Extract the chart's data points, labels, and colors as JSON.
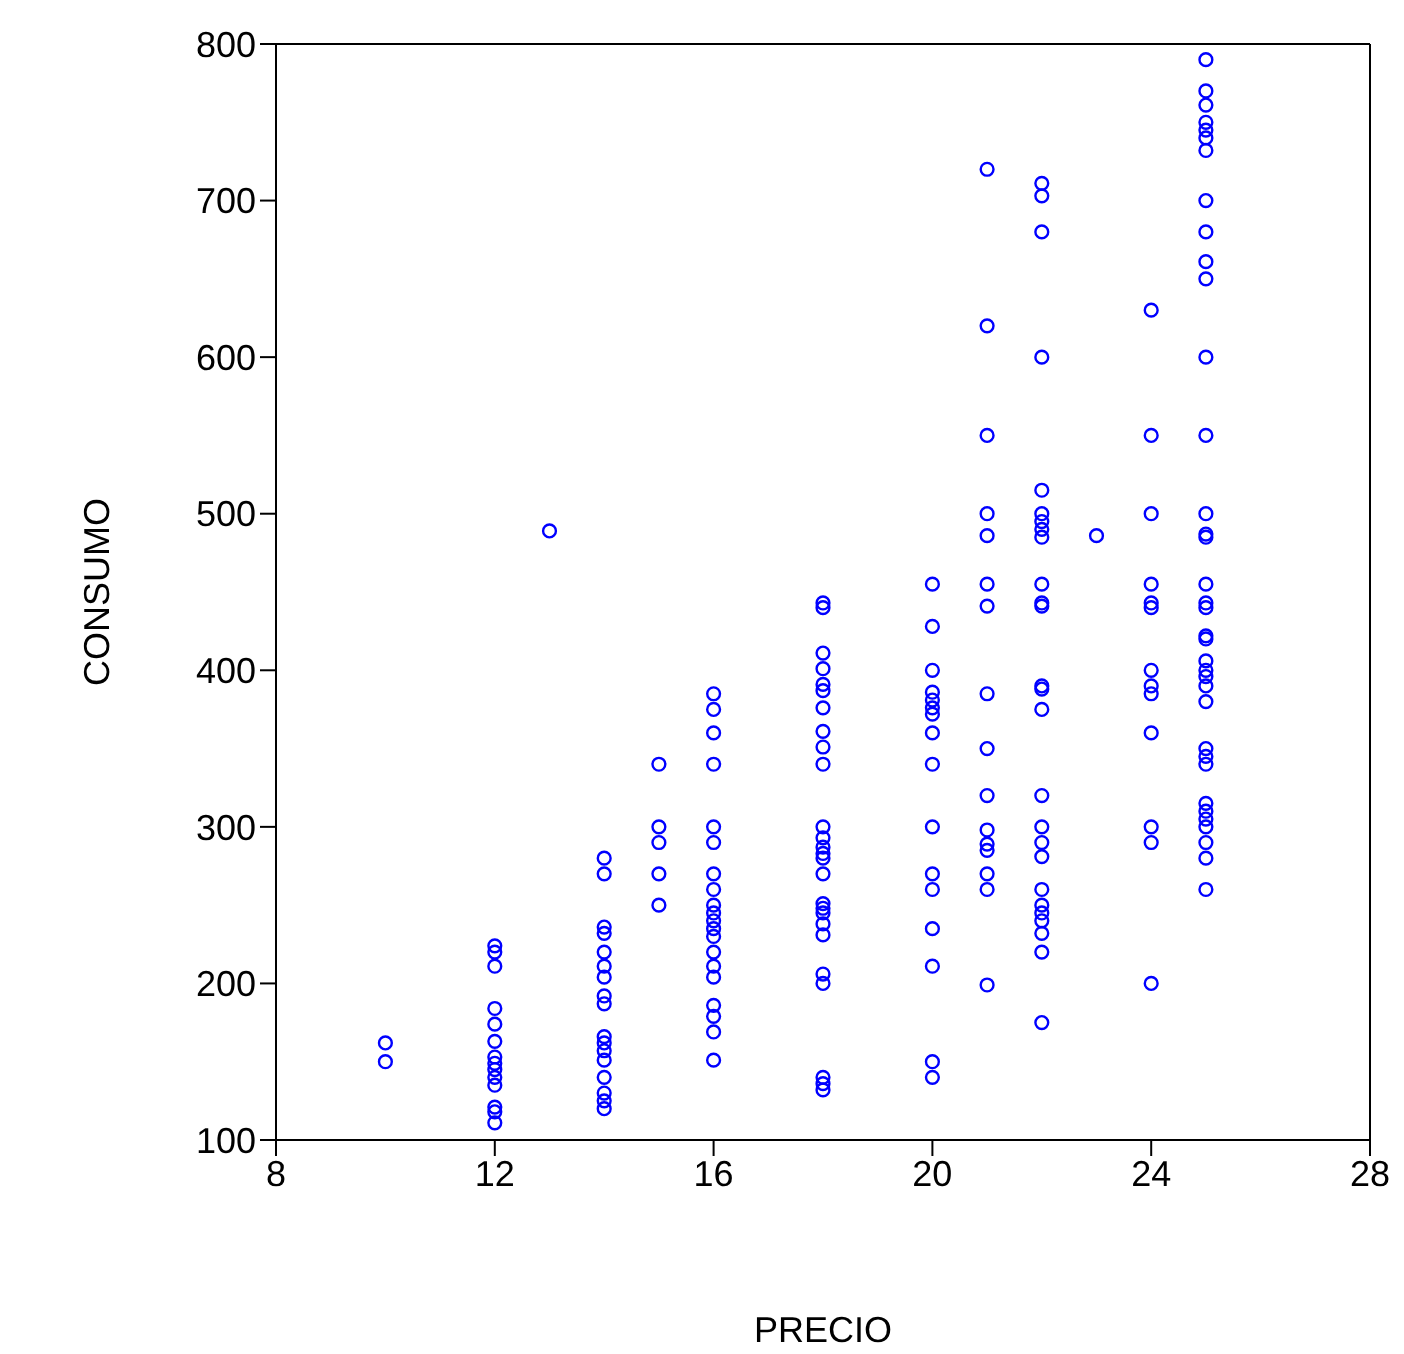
{
  "chart_data": {
    "type": "scatter",
    "xlabel": "PRECIO",
    "ylabel": "CONSUMO",
    "xlim": [
      8,
      28
    ],
    "xticks": [
      8,
      12,
      16,
      20,
      24,
      28
    ],
    "ylim": [
      100,
      800
    ],
    "yticks": [
      100,
      200,
      300,
      400,
      500,
      600,
      700,
      800
    ],
    "grid": false,
    "marker": "circle",
    "series": [
      {
        "color": "#0000ff",
        "x": [
          10,
          10,
          12,
          12,
          12,
          12,
          12,
          12,
          12,
          12,
          12,
          12,
          12,
          12,
          12,
          12,
          13,
          14,
          14,
          14,
          14,
          14,
          14,
          14,
          14,
          14,
          14,
          14,
          14,
          14,
          14,
          14,
          14,
          14,
          15,
          15,
          15,
          15,
          15,
          16,
          16,
          16,
          16,
          16,
          16,
          16,
          16,
          16,
          16,
          16,
          16,
          16,
          16,
          16,
          16,
          16,
          16,
          16,
          16,
          18,
          18,
          18,
          18,
          18,
          18,
          18,
          18,
          18,
          18,
          18,
          18,
          18,
          18,
          18,
          18,
          18,
          18,
          18,
          18,
          18,
          18,
          18,
          18,
          18,
          18,
          20,
          20,
          20,
          20,
          20,
          20,
          20,
          20,
          20,
          20,
          20,
          20,
          20,
          20,
          20,
          20,
          21,
          21,
          21,
          21,
          21,
          21,
          21,
          21,
          21,
          21,
          21,
          21,
          21,
          21,
          21,
          21,
          22,
          22,
          22,
          22,
          22,
          22,
          22,
          22,
          22,
          22,
          22,
          22,
          22,
          22,
          22,
          22,
          22,
          22,
          22,
          22,
          22,
          22,
          22,
          22,
          22,
          22,
          23,
          24,
          24,
          24,
          24,
          24,
          24,
          24,
          24,
          24,
          24,
          24,
          24,
          24,
          25,
          25,
          25,
          25,
          25,
          25,
          25,
          25,
          25,
          25,
          25,
          25,
          25,
          25,
          25,
          25,
          25,
          25,
          25,
          25,
          25,
          25,
          25,
          25,
          25,
          25,
          25,
          25,
          25,
          25,
          25,
          25,
          25,
          25,
          25,
          25
        ],
        "values": [
          162,
          150,
          224,
          220,
          211,
          184,
          174,
          163,
          153,
          149,
          145,
          140,
          135,
          121,
          118,
          111,
          489,
          280,
          270,
          236,
          232,
          220,
          211,
          204,
          192,
          187,
          166,
          162,
          157,
          151,
          140,
          130,
          125,
          120,
          340,
          300,
          290,
          270,
          250,
          385,
          375,
          360,
          340,
          300,
          290,
          270,
          260,
          250,
          245,
          240,
          235,
          230,
          220,
          211,
          204,
          186,
          179,
          169,
          151,
          140,
          443,
          440,
          411,
          401,
          391,
          387,
          376,
          361,
          351,
          340,
          300,
          293,
          287,
          283,
          280,
          270,
          251,
          248,
          245,
          238,
          231,
          206,
          200,
          136,
          132,
          455,
          428,
          400,
          386,
          381,
          376,
          372,
          360,
          340,
          300,
          270,
          260,
          235,
          211,
          150,
          140,
          720,
          620,
          550,
          500,
          486,
          455,
          441,
          385,
          350,
          320,
          298,
          289,
          285,
          270,
          260,
          199,
          711,
          703,
          680,
          600,
          515,
          500,
          495,
          490,
          485,
          455,
          443,
          441,
          390,
          388,
          375,
          320,
          300,
          290,
          281,
          260,
          250,
          245,
          240,
          232,
          220,
          175,
          486,
          630,
          550,
          500,
          455,
          443,
          440,
          400,
          390,
          385,
          360,
          300,
          290,
          200,
          790,
          770,
          761,
          750,
          745,
          740,
          732,
          700,
          680,
          661,
          650,
          600,
          550,
          500,
          487,
          485,
          455,
          443,
          440,
          422,
          420,
          406,
          400,
          396,
          390,
          380,
          350,
          345,
          340,
          315,
          310,
          305,
          300,
          290,
          280,
          260
        ]
      }
    ]
  }
}
